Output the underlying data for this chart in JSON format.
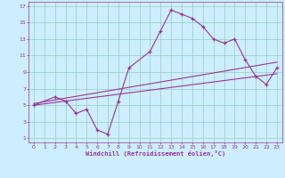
{
  "xlabel": "Windchill (Refroidissement éolien,°C)",
  "bg_color": "#cceeff",
  "line_color": "#993399",
  "grid_color": "#99ccbb",
  "xlim": [
    -0.5,
    23.5
  ],
  "ylim": [
    0.5,
    17.5
  ],
  "xticks": [
    0,
    1,
    2,
    3,
    4,
    5,
    6,
    7,
    8,
    9,
    10,
    11,
    12,
    13,
    14,
    15,
    16,
    17,
    18,
    19,
    20,
    21,
    22,
    23
  ],
  "yticks": [
    1,
    3,
    5,
    7,
    9,
    11,
    13,
    15,
    17
  ],
  "wavy_x": [
    0,
    2,
    3,
    4,
    5,
    6,
    7,
    8,
    9,
    11,
    12,
    13,
    14,
    15,
    16,
    17,
    18,
    19,
    20,
    21,
    22,
    23
  ],
  "wavy_y": [
    5,
    6,
    5.5,
    4,
    4.5,
    2,
    1.5,
    5.5,
    9.5,
    11.5,
    14,
    16.5,
    16,
    15.5,
    14.5,
    13,
    12.5,
    13,
    10.5,
    8.5,
    7.5,
    9.5
  ],
  "line1_x": [
    0,
    23
  ],
  "line1_y": [
    5.2,
    10.2
  ],
  "line2_x": [
    0,
    23
  ],
  "line2_y": [
    5.0,
    8.8
  ]
}
